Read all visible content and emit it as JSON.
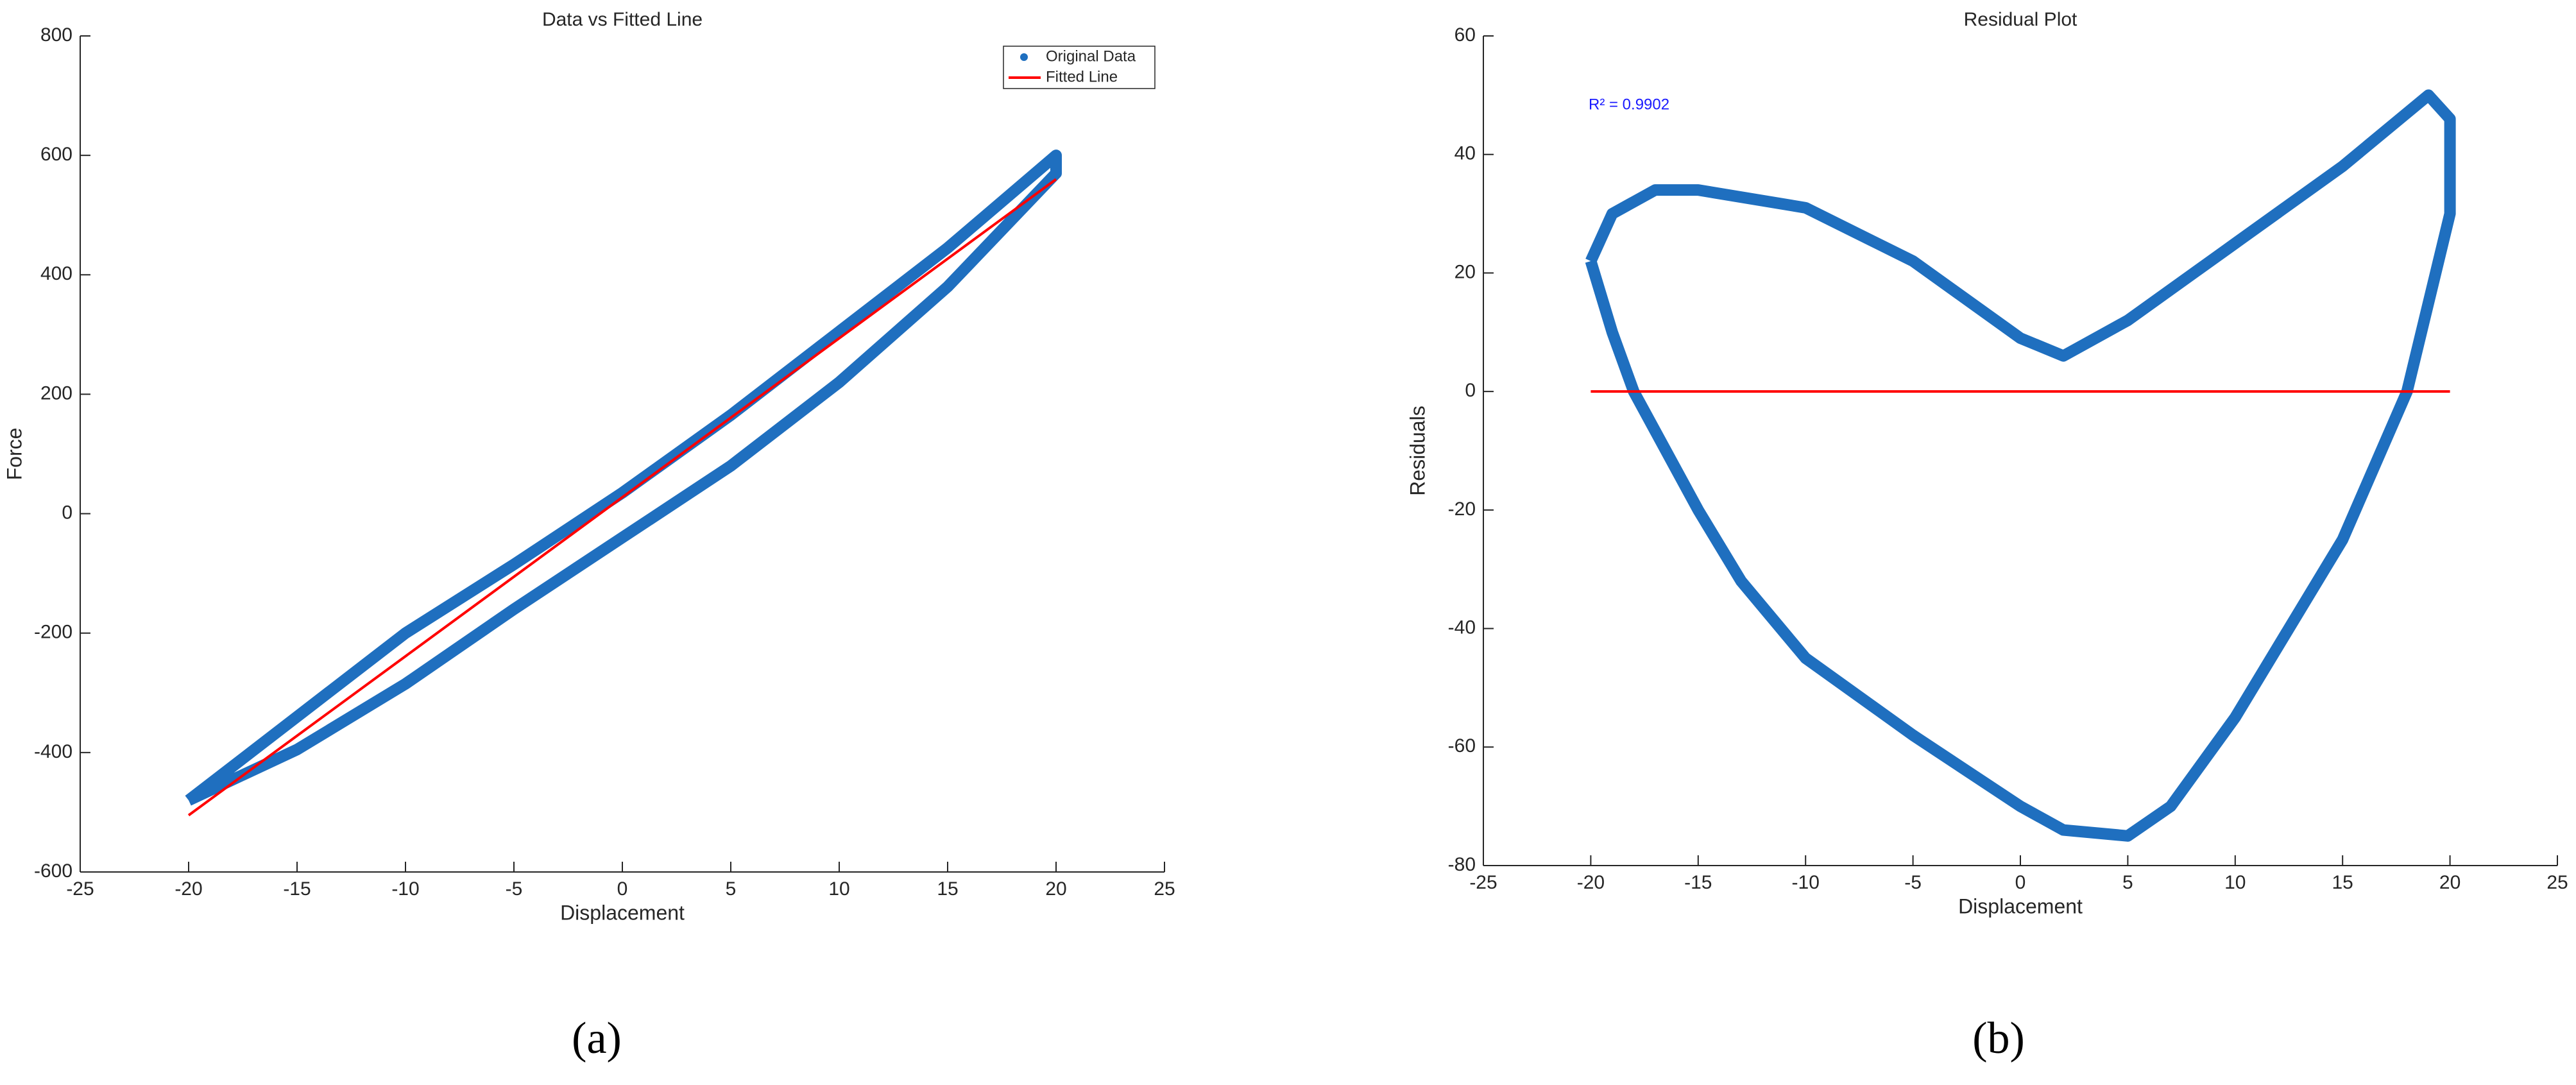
{
  "chart_data": [
    {
      "type": "line",
      "title": "Data vs Fitted Line",
      "xlabel": "Displacement",
      "ylabel": "Force",
      "xlim": [
        -25,
        25
      ],
      "xticks": [
        -25,
        -20,
        -15,
        -10,
        -5,
        0,
        5,
        10,
        15,
        20,
        25
      ],
      "ylim": [
        -600,
        800
      ],
      "yticks": [
        -600,
        -400,
        -200,
        0,
        200,
        400,
        600,
        800
      ],
      "legend": "northeast",
      "series": [
        {
          "name": "Original Data",
          "color": "#1f6fbf",
          "x": [
            -20,
            -15,
            -10,
            -5,
            0,
            5,
            10,
            15,
            20,
            20,
            15,
            10,
            5,
            0,
            -5,
            -10,
            -15,
            -20
          ],
          "values": [
            -480,
            -340,
            -200,
            -85,
            35,
            165,
            305,
            445,
            600,
            570,
            380,
            220,
            80,
            -40,
            -160,
            -285,
            -395,
            -480
          ]
        },
        {
          "name": "Fitted Line",
          "color": "#ff0000",
          "x": [
            -20,
            20
          ],
          "values": [
            -505,
            560
          ]
        }
      ]
    },
    {
      "type": "line",
      "title": "Residual Plot",
      "xlabel": "Displacement",
      "ylabel": "Residuals",
      "annotation": "R² = 0.9902",
      "xlim": [
        -25,
        25
      ],
      "xticks": [
        -25,
        -20,
        -15,
        -10,
        -5,
        0,
        5,
        10,
        15,
        20,
        25
      ],
      "ylim": [
        -80,
        60
      ],
      "yticks": [
        -80,
        -60,
        -40,
        -20,
        0,
        20,
        40,
        60
      ],
      "series": [
        {
          "color": "#1f6fbf",
          "x": [
            -20,
            -19,
            -17,
            -15,
            -10,
            -5,
            0,
            2,
            5,
            10,
            15,
            19,
            20,
            20,
            18,
            15,
            10,
            7,
            5,
            2,
            0,
            -5,
            -10,
            -13,
            -15,
            -18,
            -19,
            -20
          ],
          "values": [
            22,
            30,
            34,
            34,
            31,
            22,
            9,
            6,
            12,
            25,
            38,
            50,
            46,
            30,
            0,
            -25,
            -55,
            -70,
            -75,
            -74,
            -70,
            -58,
            -45,
            -32,
            -20,
            0,
            10,
            22
          ]
        },
        {
          "color": "#ff0000",
          "x": [
            -20,
            20
          ],
          "values": [
            0,
            0
          ]
        }
      ]
    }
  ],
  "captions": [
    "(a)",
    "(b)"
  ]
}
